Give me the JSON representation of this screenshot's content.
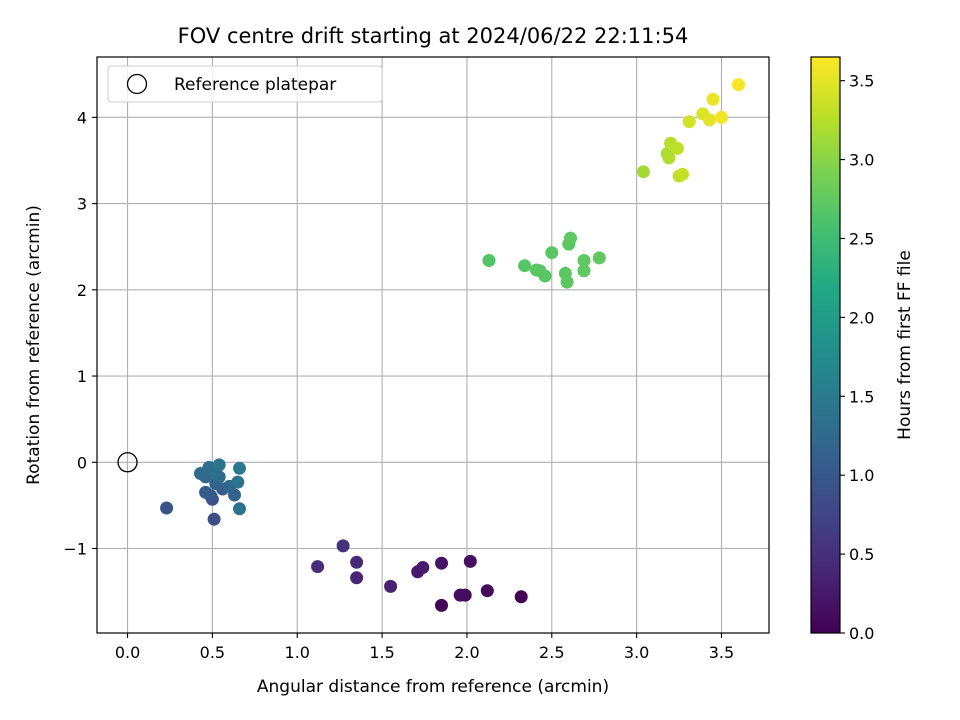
{
  "chart_data": {
    "type": "scatter",
    "title": "FOV centre drift starting at 2024/06/22 22:11:54",
    "xlabel": "Angular distance from reference (arcmin)",
    "ylabel": "Rotation from reference (arcmin)",
    "xlim": [
      -0.18,
      3.78
    ],
    "ylim": [
      -1.98,
      4.7
    ],
    "xticks": [
      0.0,
      0.5,
      1.0,
      1.5,
      2.0,
      2.5,
      3.0,
      3.5
    ],
    "xtick_labels": [
      "0.0",
      "0.5",
      "1.0",
      "1.5",
      "2.0",
      "2.5",
      "3.0",
      "3.5"
    ],
    "yticks": [
      -1,
      0,
      1,
      2,
      3,
      4
    ],
    "ytick_labels": [
      "−1",
      "0",
      "1",
      "2",
      "3",
      "4"
    ],
    "grid": true,
    "legend": {
      "position": "top-left",
      "entries": [
        "Reference platepar"
      ]
    },
    "reference": {
      "x": 0.0,
      "y": 0.0
    },
    "colorbar": {
      "label": "Hours from first FF file",
      "colormap": "viridis",
      "range": [
        0.0,
        3.65
      ],
      "ticks": [
        0.0,
        0.5,
        1.0,
        1.5,
        2.0,
        2.5,
        3.0,
        3.5
      ],
      "tick_labels": [
        "0.0",
        "0.5",
        "1.0",
        "1.5",
        "2.0",
        "2.5",
        "3.0",
        "3.5"
      ]
    },
    "points": [
      {
        "x": 2.32,
        "y": -1.56,
        "c": 0.0
      },
      {
        "x": 1.85,
        "y": -1.66,
        "c": 0.05
      },
      {
        "x": 2.12,
        "y": -1.49,
        "c": 0.08
      },
      {
        "x": 1.99,
        "y": -1.54,
        "c": 0.1
      },
      {
        "x": 1.96,
        "y": -1.54,
        "c": 0.13
      },
      {
        "x": 2.02,
        "y": -1.15,
        "c": 0.15
      },
      {
        "x": 1.85,
        "y": -1.17,
        "c": 0.2
      },
      {
        "x": 1.71,
        "y": -1.27,
        "c": 0.25
      },
      {
        "x": 1.74,
        "y": -1.22,
        "c": 0.28
      },
      {
        "x": 1.55,
        "y": -1.44,
        "c": 0.33
      },
      {
        "x": 1.35,
        "y": -1.34,
        "c": 0.38
      },
      {
        "x": 1.35,
        "y": -1.16,
        "c": 0.42
      },
      {
        "x": 1.12,
        "y": -1.21,
        "c": 0.48
      },
      {
        "x": 1.27,
        "y": -0.97,
        "c": 0.52
      },
      {
        "x": 0.51,
        "y": -0.66,
        "c": 0.85
      },
      {
        "x": 0.5,
        "y": -0.43,
        "c": 0.9
      },
      {
        "x": 0.23,
        "y": -0.53,
        "c": 0.95
      },
      {
        "x": 0.49,
        "y": -0.39,
        "c": 1.0
      },
      {
        "x": 0.46,
        "y": -0.35,
        "c": 1.05
      },
      {
        "x": 0.56,
        "y": -0.31,
        "c": 1.08
      },
      {
        "x": 0.52,
        "y": -0.25,
        "c": 1.12
      },
      {
        "x": 0.63,
        "y": -0.38,
        "c": 1.15
      },
      {
        "x": 0.6,
        "y": -0.28,
        "c": 1.2
      },
      {
        "x": 0.43,
        "y": -0.13,
        "c": 1.22
      },
      {
        "x": 0.46,
        "y": -0.17,
        "c": 1.25
      },
      {
        "x": 0.54,
        "y": -0.17,
        "c": 1.28
      },
      {
        "x": 0.48,
        "y": -0.06,
        "c": 1.32
      },
      {
        "x": 0.51,
        "y": -0.11,
        "c": 1.35
      },
      {
        "x": 0.54,
        "y": -0.03,
        "c": 1.38
      },
      {
        "x": 0.66,
        "y": -0.54,
        "c": 1.4
      },
      {
        "x": 0.65,
        "y": -0.23,
        "c": 1.42
      },
      {
        "x": 0.66,
        "y": -0.07,
        "c": 1.47
      },
      {
        "x": 2.13,
        "y": 2.34,
        "c": 2.65
      },
      {
        "x": 2.34,
        "y": 2.28,
        "c": 2.67
      },
      {
        "x": 2.41,
        "y": 2.23,
        "c": 2.68
      },
      {
        "x": 2.43,
        "y": 2.22,
        "c": 2.69
      },
      {
        "x": 2.46,
        "y": 2.16,
        "c": 2.7
      },
      {
        "x": 2.5,
        "y": 2.43,
        "c": 2.7
      },
      {
        "x": 2.58,
        "y": 2.19,
        "c": 2.71
      },
      {
        "x": 2.59,
        "y": 2.09,
        "c": 2.72
      },
      {
        "x": 2.6,
        "y": 2.53,
        "c": 2.72
      },
      {
        "x": 2.61,
        "y": 2.6,
        "c": 2.73
      },
      {
        "x": 2.69,
        "y": 2.34,
        "c": 2.73
      },
      {
        "x": 2.69,
        "y": 2.22,
        "c": 2.74
      },
      {
        "x": 2.78,
        "y": 2.37,
        "c": 2.75
      },
      {
        "x": 3.04,
        "y": 3.37,
        "c": 3.15
      },
      {
        "x": 3.18,
        "y": 3.58,
        "c": 3.2
      },
      {
        "x": 3.19,
        "y": 3.53,
        "c": 3.22
      },
      {
        "x": 3.2,
        "y": 3.7,
        "c": 3.25
      },
      {
        "x": 3.24,
        "y": 3.64,
        "c": 3.28
      },
      {
        "x": 3.25,
        "y": 3.32,
        "c": 3.3
      },
      {
        "x": 3.27,
        "y": 3.34,
        "c": 3.32
      },
      {
        "x": 3.31,
        "y": 3.95,
        "c": 3.4
      },
      {
        "x": 3.39,
        "y": 4.04,
        "c": 3.45
      },
      {
        "x": 3.43,
        "y": 3.97,
        "c": 3.5
      },
      {
        "x": 3.45,
        "y": 4.21,
        "c": 3.55
      },
      {
        "x": 3.5,
        "y": 4.0,
        "c": 3.58
      },
      {
        "x": 3.6,
        "y": 4.38,
        "c": 3.62
      }
    ]
  }
}
